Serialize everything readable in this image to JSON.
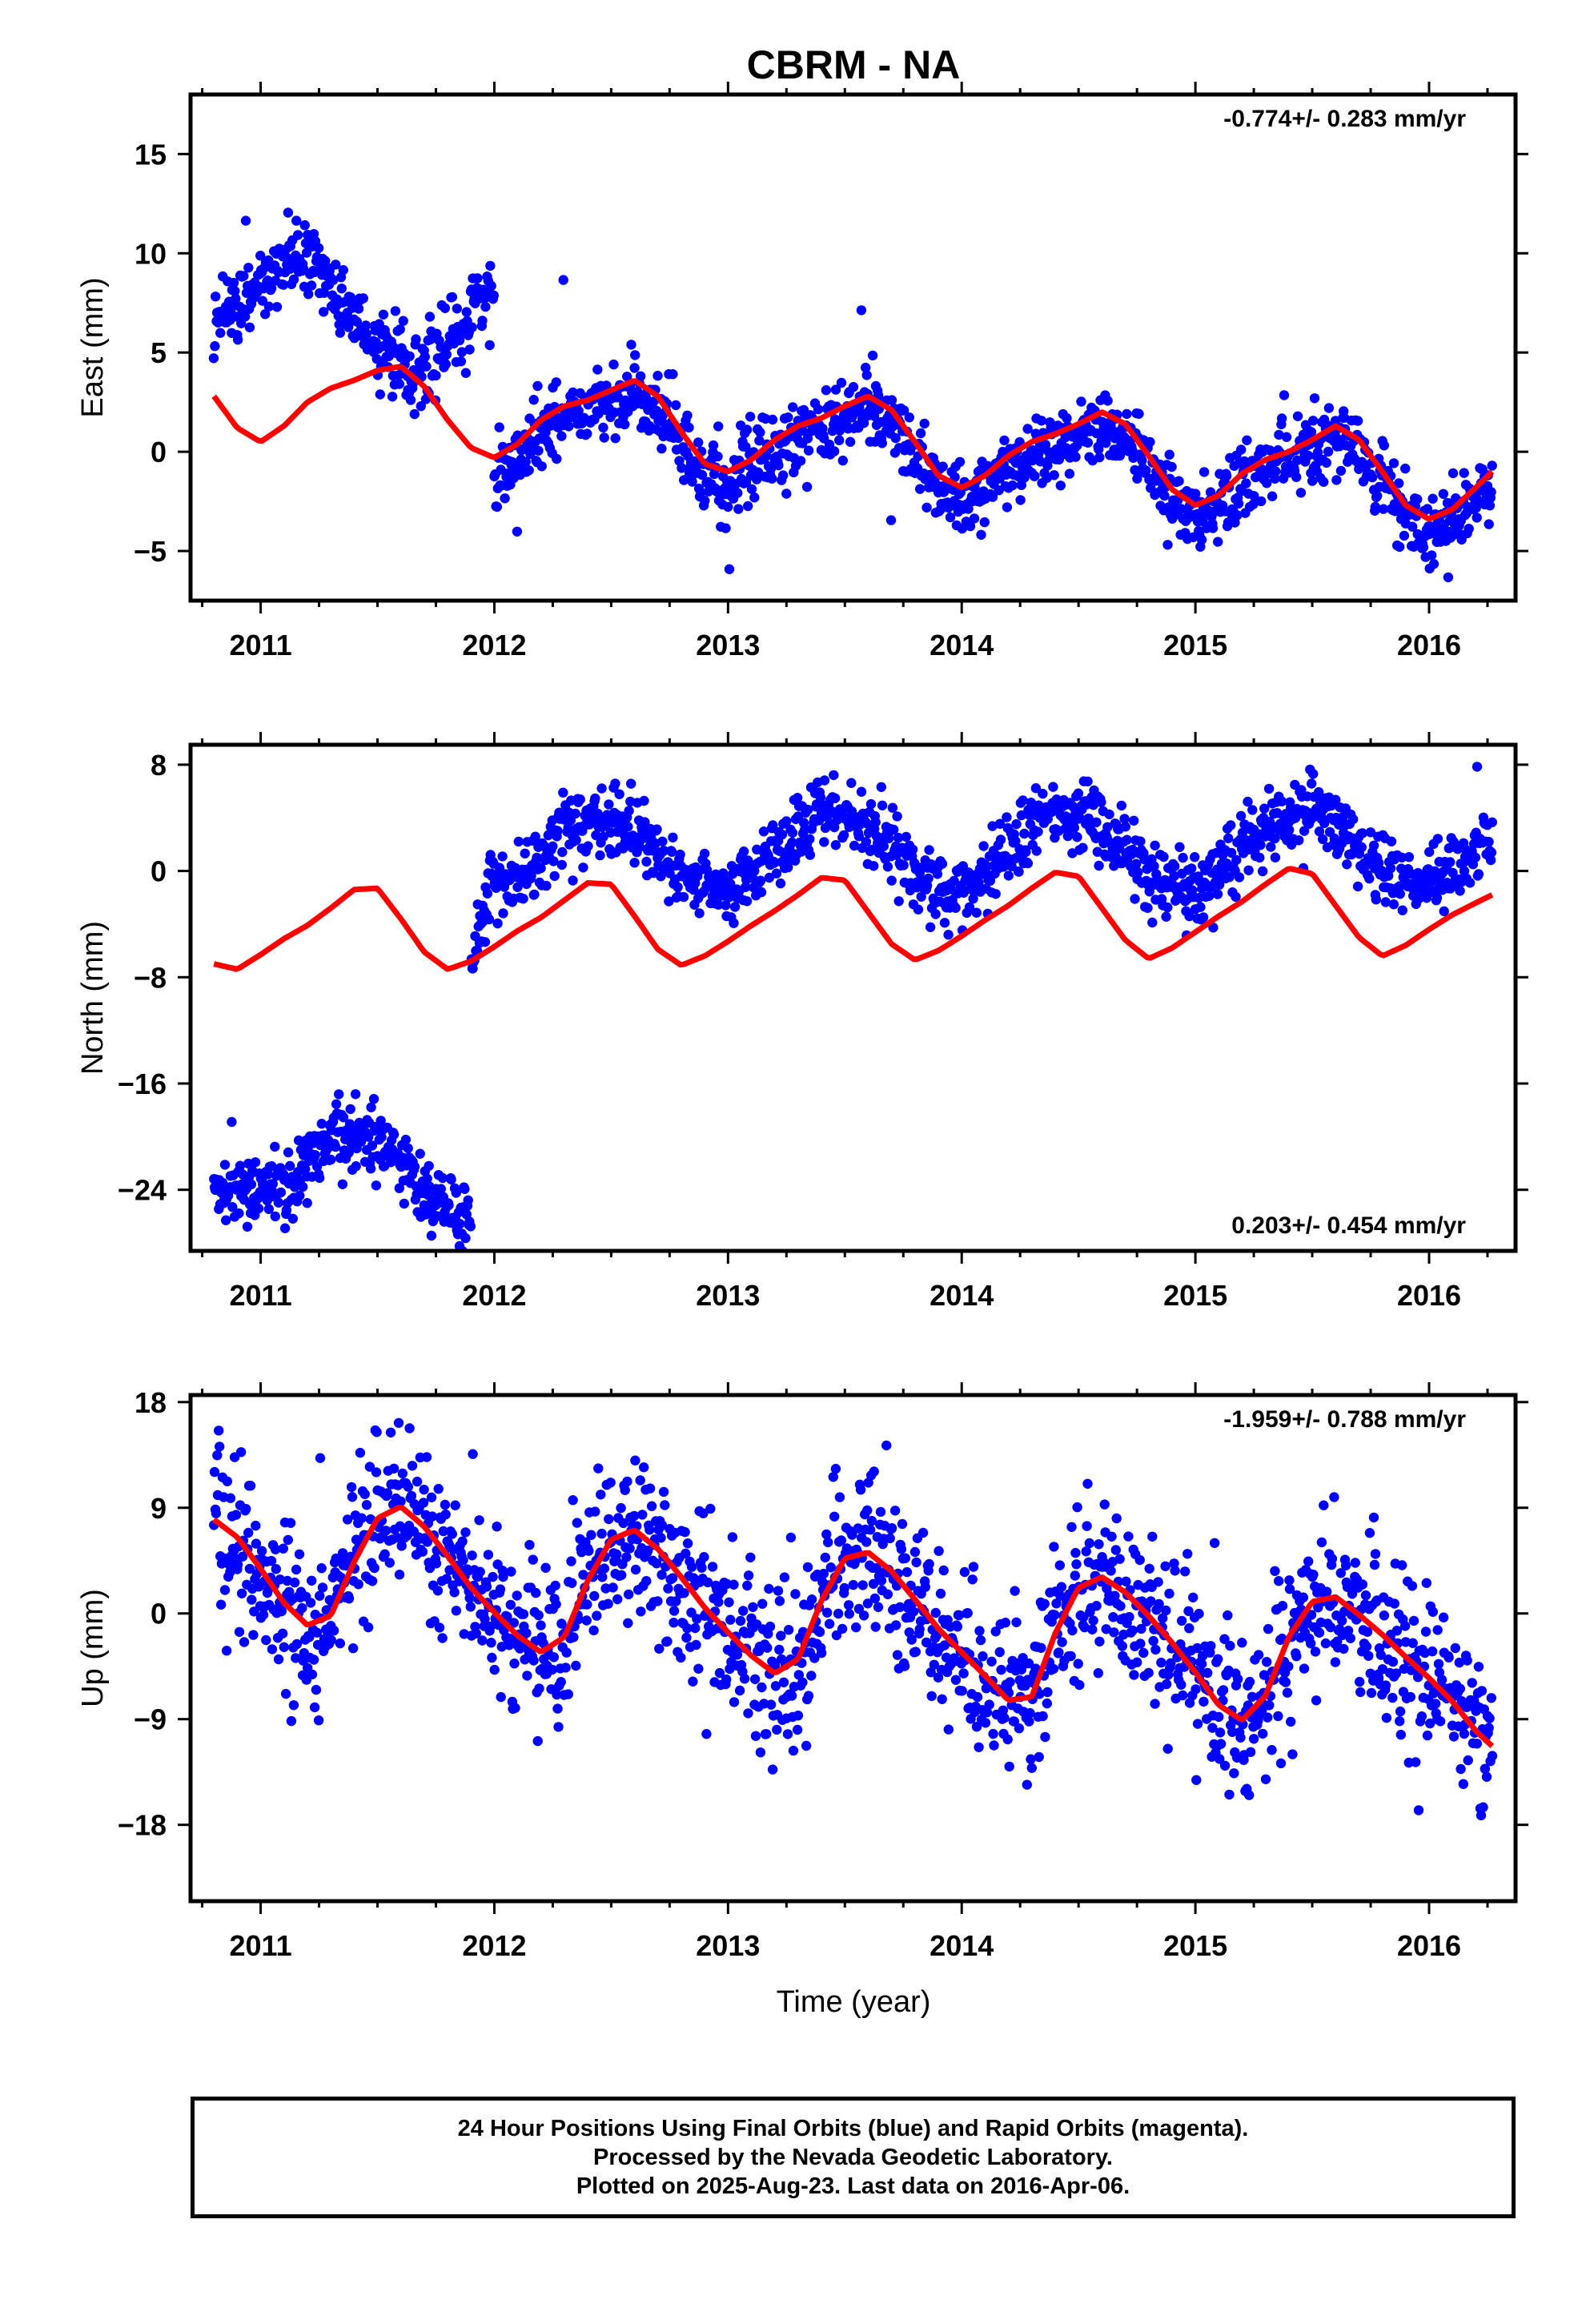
{
  "chart_data": {
    "title": "CBRM - NA",
    "xlabel": "Time (year)",
    "x_ticks": [
      2011,
      2012,
      2013,
      2014,
      2015,
      2016
    ],
    "xlim": [
      2010.7,
      2016.37
    ],
    "colors": {
      "final": "#0000ff",
      "model": "#ff0000"
    },
    "panels": [
      {
        "type": "scatter",
        "component": "east",
        "ylabel": "East (mm)",
        "ylim": [
          -7.5,
          18
        ],
        "y_ticks": [
          -5,
          0,
          5,
          10,
          15
        ],
        "rate_label": "-0.774+/- 0.283 mm/yr",
        "rate_position": "top-right",
        "data_start": 2010.8,
        "data_end": 2016.27,
        "model": {
          "name": "",
          "x": [
            2010.8,
            2010.9,
            2011.0,
            2011.1,
            2011.2,
            2011.3,
            2011.4,
            2011.5,
            2011.6,
            2011.7,
            2011.8,
            2011.9,
            2012.0,
            2012.1,
            2012.2,
            2012.3,
            2012.4,
            2012.5,
            2012.6,
            2012.7,
            2012.8,
            2012.9,
            2013.0,
            2013.1,
            2013.2,
            2013.3,
            2013.4,
            2013.5,
            2013.6,
            2013.7,
            2013.8,
            2013.9,
            2014.0,
            2014.1,
            2014.2,
            2014.3,
            2014.4,
            2014.5,
            2014.6,
            2014.7,
            2014.8,
            2014.9,
            2015.0,
            2015.1,
            2015.2,
            2015.3,
            2015.4,
            2015.5,
            2015.6,
            2015.7,
            2015.8,
            2015.9,
            2016.0,
            2016.1,
            2016.2,
            2016.27
          ],
          "y": [
            2.8,
            1.2,
            0.5,
            1.3,
            2.5,
            3.2,
            3.6,
            4.1,
            4.3,
            3.3,
            1.6,
            0.2,
            -0.3,
            0.4,
            1.6,
            2.3,
            2.6,
            3.1,
            3.6,
            2.8,
            1.0,
            -0.6,
            -1.0,
            -0.4,
            0.6,
            1.3,
            1.7,
            2.3,
            2.8,
            2.1,
            0.5,
            -1.2,
            -1.8,
            -1.2,
            -0.2,
            0.5,
            0.9,
            1.4,
            2.0,
            1.4,
            -0.2,
            -1.9,
            -2.7,
            -2.2,
            -1.1,
            -0.4,
            0.0,
            0.6,
            1.3,
            0.6,
            -1.0,
            -2.7,
            -3.4,
            -2.9,
            -1.8,
            -1.0
          ]
        },
        "points": {
          "name": "",
          "count": 1600,
          "params": {
            "mode": "east",
            "noise": 0.9
          }
        }
      },
      {
        "type": "scatter",
        "component": "north",
        "ylabel": "North (mm)",
        "ylim": [
          -28.6,
          9.5
        ],
        "y_ticks": [
          -24,
          -16,
          -8,
          0,
          8
        ],
        "rate_label": "0.203+/- 0.454 mm/yr",
        "rate_position": "bottom-right",
        "data_start": 2010.8,
        "data_end": 2016.27,
        "model": {
          "name": "",
          "x": [
            2010.8,
            2010.9,
            2011.0,
            2011.1,
            2011.2,
            2011.3,
            2011.4,
            2011.5,
            2011.6,
            2011.7,
            2011.8,
            2011.9,
            2012.0,
            2012.1,
            2012.2,
            2012.3,
            2012.4,
            2012.5,
            2012.6,
            2012.7,
            2012.8,
            2012.9,
            2013.0,
            2013.1,
            2013.2,
            2013.3,
            2013.4,
            2013.5,
            2013.6,
            2013.7,
            2013.8,
            2013.9,
            2014.0,
            2014.1,
            2014.2,
            2014.3,
            2014.4,
            2014.5,
            2014.6,
            2014.7,
            2014.8,
            2014.9,
            2015.0,
            2015.1,
            2015.2,
            2015.3,
            2015.4,
            2015.5,
            2015.6,
            2015.7,
            2015.8,
            2015.9,
            2016.0,
            2016.1,
            2016.2,
            2016.27
          ],
          "y": [
            -7.0,
            -7.4,
            -6.3,
            -5.1,
            -4.1,
            -2.8,
            -1.4,
            -1.3,
            -3.6,
            -6.1,
            -7.4,
            -6.8,
            -5.7,
            -4.5,
            -3.5,
            -2.2,
            -0.9,
            -1.0,
            -3.4,
            -5.9,
            -7.1,
            -6.4,
            -5.3,
            -4.1,
            -3.0,
            -1.8,
            -0.5,
            -0.7,
            -3.1,
            -5.5,
            -6.7,
            -6.0,
            -4.9,
            -3.7,
            -2.6,
            -1.3,
            -0.1,
            -0.4,
            -2.8,
            -5.2,
            -6.6,
            -5.8,
            -4.6,
            -3.4,
            -2.3,
            -1.0,
            0.2,
            -0.2,
            -2.6,
            -5.0,
            -6.4,
            -5.6,
            -4.4,
            -3.3,
            -2.4,
            -1.8
          ]
        },
        "points": {
          "name": "",
          "count": 1600,
          "params": {
            "mode": "north",
            "noise": 1.3
          }
        }
      },
      {
        "type": "scatter",
        "component": "up",
        "ylabel": "Up (mm)",
        "ylim": [
          -24.5,
          18.6
        ],
        "y_ticks": [
          -18,
          -9,
          0,
          9,
          18
        ],
        "rate_label": "-1.959+/- 0.788 mm/yr",
        "rate_position": "top-right",
        "data_start": 2010.8,
        "data_end": 2016.27,
        "model": {
          "name": "",
          "x": [
            2010.8,
            2010.9,
            2011.0,
            2011.1,
            2011.2,
            2011.3,
            2011.4,
            2011.5,
            2011.6,
            2011.7,
            2011.8,
            2011.9,
            2012.0,
            2012.1,
            2012.2,
            2012.3,
            2012.4,
            2012.5,
            2012.6,
            2012.7,
            2012.8,
            2012.9,
            2013.0,
            2013.1,
            2013.2,
            2013.3,
            2013.4,
            2013.5,
            2013.6,
            2013.7,
            2013.8,
            2013.9,
            2014.0,
            2014.1,
            2014.2,
            2014.3,
            2014.4,
            2014.5,
            2014.6,
            2014.7,
            2014.8,
            2014.9,
            2015.0,
            2015.1,
            2015.2,
            2015.3,
            2015.4,
            2015.5,
            2015.6,
            2015.7,
            2015.8,
            2015.9,
            2016.0,
            2016.1,
            2016.2,
            2016.27
          ],
          "y": [
            8.0,
            6.5,
            3.8,
            0.9,
            -1.0,
            -0.2,
            4.4,
            8.1,
            9.1,
            7.4,
            4.9,
            2.2,
            0.1,
            -1.9,
            -3.3,
            -2.0,
            2.8,
            6.3,
            7.1,
            5.5,
            3.1,
            0.5,
            -1.6,
            -3.6,
            -5.1,
            -3.9,
            1.1,
            4.7,
            5.2,
            3.6,
            1.2,
            -1.3,
            -3.3,
            -5.3,
            -7.4,
            -7.1,
            -1.7,
            2.2,
            3.1,
            1.8,
            -0.2,
            -2.5,
            -5.0,
            -7.8,
            -9.1,
            -7.0,
            -2.0,
            1.0,
            1.4,
            -0.1,
            -1.8,
            -3.7,
            -5.5,
            -7.5,
            -10.0,
            -11.3
          ]
        },
        "points": {
          "name": "",
          "count": 1600,
          "params": {
            "mode": "up",
            "noise": 3.4
          }
        }
      }
    ]
  },
  "caption": {
    "line1": "24 Hour Positions Using Final Orbits (blue) and Rapid Orbits (magenta).",
    "line2": "Processed by the Nevada Geodetic Laboratory.",
    "line3": "Plotted on 2025-Aug-23. Last data on 2016-Apr-06."
  }
}
